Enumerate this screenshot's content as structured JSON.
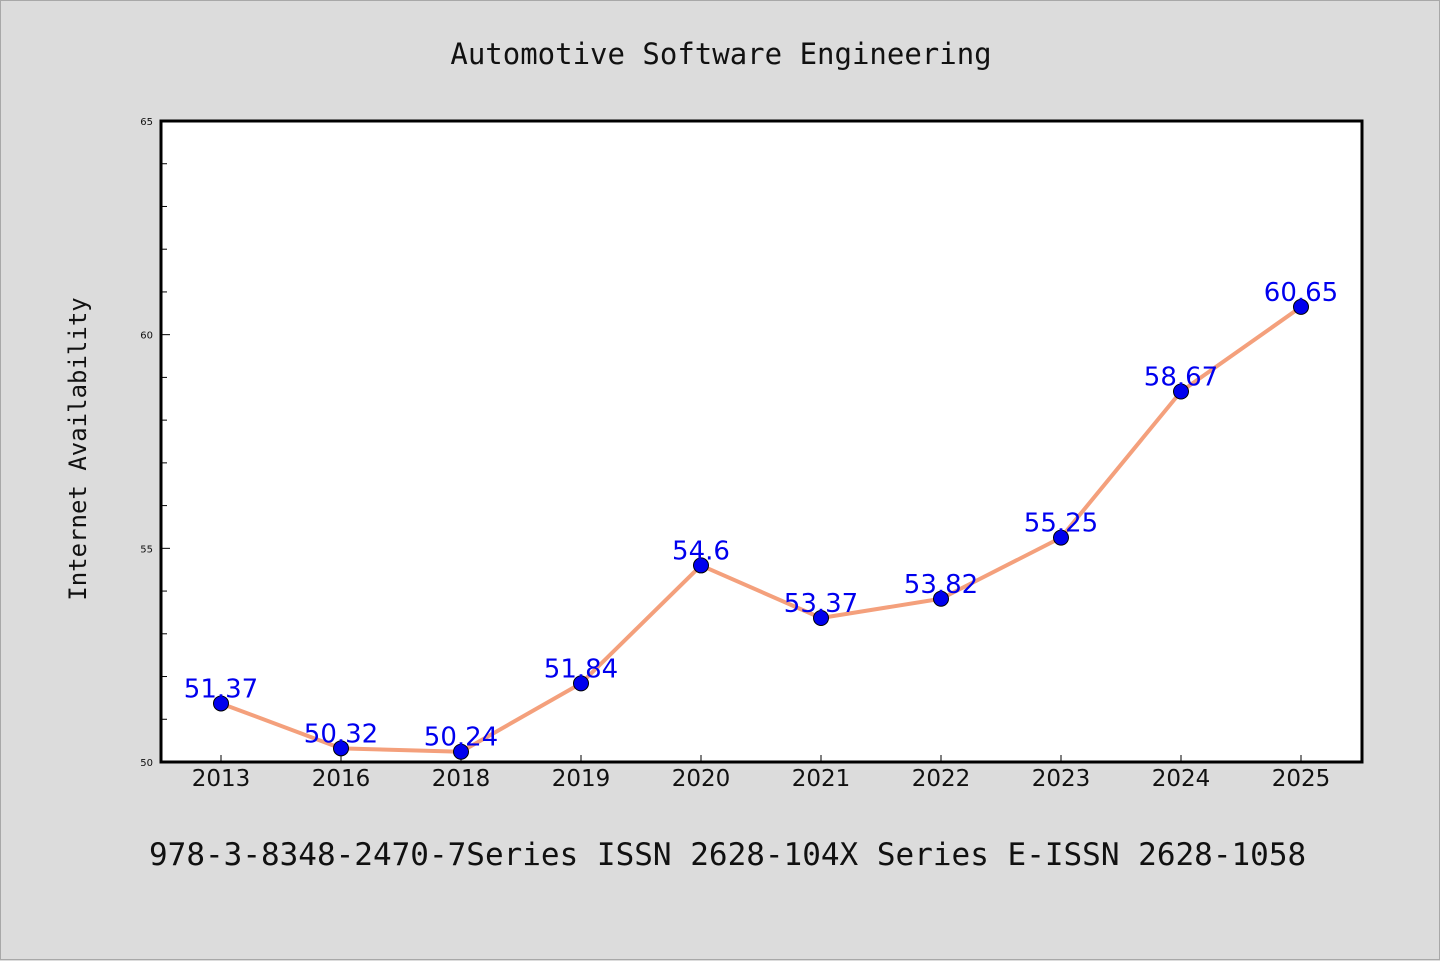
{
  "chart_data": {
    "type": "line",
    "title": "Automotive Software Engineering",
    "xlabel": "",
    "ylabel": "Internet Availability",
    "categories": [
      "2013",
      "2016",
      "2018",
      "2019",
      "2020",
      "2021",
      "2022",
      "2023",
      "2024",
      "2025"
    ],
    "series": [
      {
        "values": [
          51.37,
          50.32,
          50.24,
          51.84,
          54.6,
          53.37,
          53.82,
          55.25,
          58.67,
          60.65
        ],
        "labels": [
          "51.37",
          "50.32",
          "50.24",
          "51.84",
          "54.6",
          "53.37",
          "53.82",
          "55.25",
          "58.67",
          "60.65"
        ],
        "line_color": "#f4a07c",
        "marker_color": "#0000ee",
        "label_color": "#0000ee"
      }
    ],
    "ylim": [
      50,
      65
    ],
    "yticks": [
      "50",
      "55",
      "60",
      "65"
    ],
    "grid": false,
    "legend": "none"
  },
  "footer": {
    "text": "978-3-8348-2470-7Series ISSN 2628-104X Series E-ISSN 2628-1058"
  },
  "colors": {
    "background": "#dcdcdc",
    "plot_background": "#ffffff",
    "axis": "#000000"
  }
}
